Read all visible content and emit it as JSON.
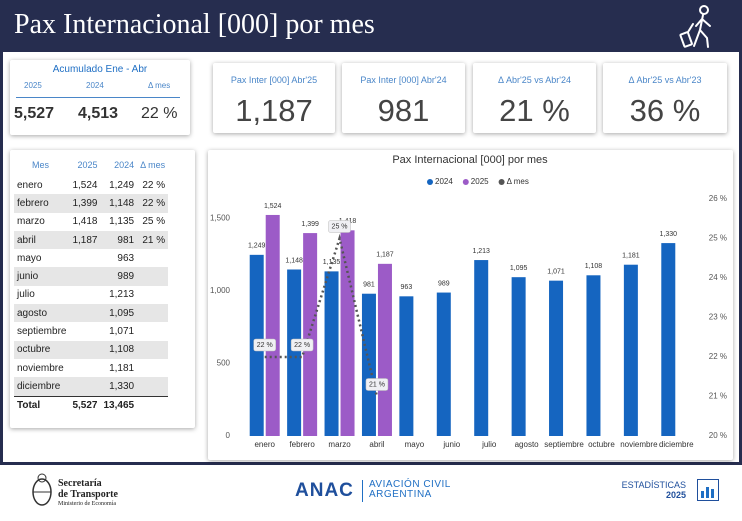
{
  "header": {
    "title": "Pax Internacional [000] por mes"
  },
  "summary": {
    "title": "Acumulado Ene - Abr",
    "columns": [
      "2025",
      "2024",
      "Δ mes"
    ],
    "values": [
      "5,527",
      "4,513",
      "22 %"
    ]
  },
  "kpis": [
    {
      "label": "Pax Inter [000] Abr'25",
      "value": "1,187"
    },
    {
      "label": "Pax Inter [000] Abr'24",
      "value": "981"
    },
    {
      "label": "Δ Abr'25 vs Abr'24",
      "value": "21 %"
    },
    {
      "label": "Δ Abr'25 vs Abr'23",
      "value": "36 %"
    }
  ],
  "table": {
    "columns": [
      "Mes",
      "2025",
      "2024",
      "Δ mes"
    ],
    "rows": [
      [
        "enero",
        "1,524",
        "1,249",
        "22 %"
      ],
      [
        "febrero",
        "1,399",
        "1,148",
        "22 %"
      ],
      [
        "marzo",
        "1,418",
        "1,135",
        "25 %"
      ],
      [
        "abril",
        "1,187",
        "981",
        "21 %"
      ],
      [
        "mayo",
        null,
        "963",
        null
      ],
      [
        "junio",
        null,
        "989",
        null
      ],
      [
        "julio",
        null,
        "1,213",
        null
      ],
      [
        "agosto",
        null,
        "1,095",
        null
      ],
      [
        "septiembre",
        null,
        "1,071",
        null
      ],
      [
        "octubre",
        null,
        "1,108",
        null
      ],
      [
        "noviembre",
        null,
        "1,181",
        null
      ],
      [
        "diciembre",
        null,
        "1,330",
        null
      ]
    ],
    "total": [
      "Total",
      "5,527",
      "13,465",
      null
    ]
  },
  "chart_data": {
    "type": "bar",
    "title": "Pax Internacional [000] por mes",
    "categories": [
      "enero",
      "febrero",
      "marzo",
      "abril",
      "mayo",
      "junio",
      "julio",
      "agosto",
      "septiembre",
      "octubre",
      "noviembre",
      "diciembre"
    ],
    "series": [
      {
        "name": "2024",
        "color": "#1565c0",
        "values": [
          1249,
          1148,
          1135,
          981,
          963,
          989,
          1213,
          1095,
          1071,
          1108,
          1181,
          1330
        ],
        "value_labels": [
          "1,249",
          "1,148",
          "1,135",
          "981",
          "963",
          "989",
          "1,213",
          "1,095",
          "1,071",
          "1,108",
          "1,181",
          "1,330"
        ]
      },
      {
        "name": "2025",
        "color": "#9c5bc7",
        "values": [
          1524,
          1399,
          1418,
          1187,
          null,
          null,
          null,
          null,
          null,
          null,
          null,
          null
        ],
        "value_labels": [
          "1,524",
          "1,399",
          "1,418",
          "1,187",
          null,
          null,
          null,
          null,
          null,
          null,
          null,
          null
        ]
      },
      {
        "name": "Δ mes",
        "color": "#555555",
        "type": "line",
        "axis": "y2",
        "values": [
          22,
          22,
          25,
          21,
          null,
          null,
          null,
          null,
          null,
          null,
          null,
          null
        ],
        "value_labels": [
          "22 %",
          "22 %",
          "25 %",
          "21 %",
          null,
          null,
          null,
          null,
          null,
          null,
          null,
          null
        ]
      }
    ],
    "ylim": [
      0,
      1634
    ],
    "yticks": [
      0,
      500,
      {
        "value": 1000,
        "label": "1,000"
      },
      {
        "value": 1500,
        "label": "1,500"
      }
    ],
    "y2lim": [
      20,
      26
    ],
    "y2ticks": [
      {
        "value": 20,
        "label": "20 %"
      },
      {
        "value": 21,
        "label": "21 %"
      },
      {
        "value": 22,
        "label": "22 %"
      },
      {
        "value": 23,
        "label": "23 %"
      },
      {
        "value": 24,
        "label": "24 %"
      },
      {
        "value": 25,
        "label": "25 %"
      },
      {
        "value": 26,
        "label": "26 %"
      }
    ],
    "grid": false,
    "legend": "top"
  },
  "footer": {
    "ministry": [
      "Secretaría",
      "de Transporte",
      "Ministerio de Economía"
    ],
    "agency": "ANAC",
    "agency_name": [
      "AVIACIÓN CIVIL",
      "ARGENTINA"
    ],
    "stats": [
      "ESTADÍSTICAS",
      "2025"
    ]
  }
}
